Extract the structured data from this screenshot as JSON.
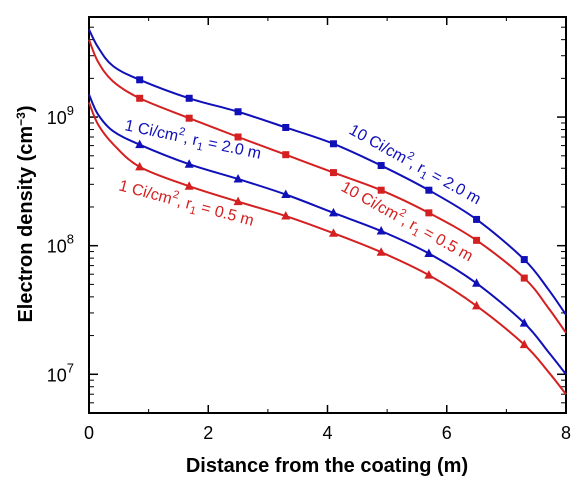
{
  "chart_data": {
    "type": "line",
    "xlabel": "Distance from the coating (m)",
    "ylabel_main": "Electron density (cm",
    "ylabel_sup": "−3",
    "ylabel_close": ")",
    "xlim": [
      0,
      8
    ],
    "ylim": [
      5000000,
      6000000000
    ],
    "yscale": "log",
    "x_ticks": [
      "0",
      "2",
      "4",
      "6",
      "8"
    ],
    "y_ticks": [
      {
        "value": 10000000,
        "base": "10",
        "exp": "7"
      },
      {
        "value": 100000000,
        "base": "10",
        "exp": "8"
      },
      {
        "value": 1000000000,
        "base": "10",
        "exp": "9"
      }
    ],
    "grid": false,
    "series": [
      {
        "label_main": "10 Ci/cm",
        "label_sup": "2",
        "label_mid": ", r",
        "label_sub": "1",
        "label_tail": " = 2.0 m",
        "color": "#1010b8",
        "marker": "square",
        "curve_x": [
          0,
          0.15,
          0.4,
          0.85,
          1.68,
          2.5,
          3.3,
          4.1,
          4.9,
          5.7,
          6.5,
          7.3,
          7.7,
          8.0
        ],
        "curve_y": [
          4800000000,
          3500000000,
          2500000000,
          1950000000,
          1400000000,
          1100000000,
          830000000,
          620000000,
          420000000,
          270000000,
          160000000,
          78000000,
          46000000,
          29000000
        ],
        "marker_x": [
          0.85,
          1.68,
          2.5,
          3.3,
          4.1,
          4.9,
          5.7,
          6.5,
          7.3
        ],
        "marker_y": [
          1950000000,
          1400000000,
          1100000000,
          830000000,
          620000000,
          420000000,
          270000000,
          160000000,
          78000000
        ]
      },
      {
        "label_main": "10 Ci/cm",
        "label_sup": "2",
        "label_mid": ", r",
        "label_sub": "1",
        "label_tail": " = 0.5 m",
        "color": "#d42020",
        "marker": "square",
        "curve_x": [
          0,
          0.15,
          0.4,
          0.85,
          1.68,
          2.5,
          3.3,
          4.1,
          4.9,
          5.7,
          6.5,
          7.3,
          7.7,
          8.0
        ],
        "curve_y": [
          4000000000,
          2700000000,
          1900000000,
          1400000000,
          980000000,
          700000000,
          510000000,
          370000000,
          270000000,
          180000000,
          110000000,
          56000000,
          33000000,
          21000000
        ],
        "marker_x": [
          0.85,
          1.68,
          2.5,
          3.3,
          4.1,
          4.9,
          5.7,
          6.5,
          7.3
        ],
        "marker_y": [
          1400000000,
          980000000,
          700000000,
          510000000,
          370000000,
          270000000,
          180000000,
          110000000,
          56000000
        ]
      },
      {
        "label_main": "1 Ci/cm",
        "label_sup": "2",
        "label_mid": ", r",
        "label_sub": "1",
        "label_tail": " = 2.0 m",
        "color": "#1010b8",
        "marker": "triangle",
        "curve_x": [
          0,
          0.15,
          0.4,
          0.85,
          1.68,
          2.5,
          3.3,
          4.1,
          4.9,
          5.7,
          6.5,
          7.3,
          7.7,
          8.0
        ],
        "curve_y": [
          1500000000,
          1050000000,
          780000000,
          610000000,
          430000000,
          330000000,
          250000000,
          180000000,
          130000000,
          87000000,
          51000000,
          25000000,
          15000000,
          10000000
        ],
        "marker_x": [
          0.85,
          1.68,
          2.5,
          3.3,
          4.1,
          4.9,
          5.7,
          6.5,
          7.3
        ],
        "marker_y": [
          610000000,
          430000000,
          330000000,
          250000000,
          180000000,
          130000000,
          87000000,
          51000000,
          25000000
        ]
      },
      {
        "label_main": "1 Ci/cm",
        "label_sup": "2",
        "label_mid": ", r",
        "label_sub": "1",
        "label_tail": " = 0.5 m",
        "color": "#d42020",
        "marker": "triangle",
        "curve_x": [
          0,
          0.15,
          0.4,
          0.85,
          1.68,
          2.5,
          3.3,
          4.1,
          4.9,
          5.7,
          6.5,
          7.3,
          7.7,
          8.0
        ],
        "curve_y": [
          1300000000,
          880000000,
          620000000,
          410000000,
          290000000,
          220000000,
          170000000,
          125000000,
          89000000,
          59000000,
          34000000,
          17000000,
          10500000,
          7000000
        ],
        "marker_x": [
          0.85,
          1.68,
          2.5,
          3.3,
          4.1,
          4.9,
          5.7,
          6.5,
          7.3
        ],
        "marker_y": [
          410000000,
          290000000,
          220000000,
          170000000,
          125000000,
          89000000,
          59000000,
          34000000,
          17000000
        ]
      }
    ]
  }
}
